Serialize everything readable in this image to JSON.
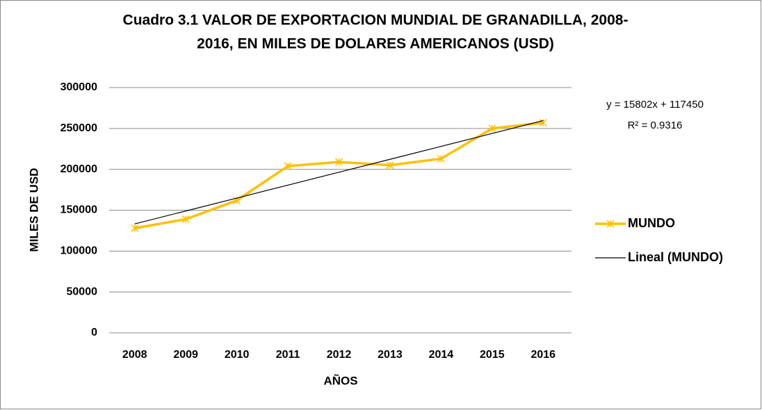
{
  "chart_data": {
    "type": "line",
    "title": [
      "Cuadro 3.1  VALOR DE EXPORTACION MUNDIAL DE GRANADILLA, 2008-",
      "2016, EN MILES DE DOLARES AMERICANOS (USD)"
    ],
    "x_label": "AÑOS",
    "y_label": "MILES DE USD",
    "categories": [
      "2008",
      "2009",
      "2010",
      "2011",
      "2012",
      "2013",
      "2014",
      "2015",
      "2016"
    ],
    "series": [
      {
        "name": "MUNDO",
        "color": "#ffc000",
        "marker": "x",
        "values": [
          128000,
          139000,
          162000,
          204000,
          209000,
          205000,
          213000,
          250000,
          257000
        ]
      },
      {
        "name": "Lineal (MUNDO)",
        "color": "#000000",
        "values": [
          133252,
          149054,
          164856,
          180658,
          196460,
          212262,
          228064,
          243866,
          259668
        ]
      }
    ],
    "annotations": [
      "y = 15802x + 117450",
      "R² = 0.9316"
    ],
    "ylim": [
      0,
      300000
    ],
    "yticks": [
      0,
      50000,
      100000,
      150000,
      200000,
      250000,
      300000
    ],
    "grid": true,
    "legend": "right"
  }
}
